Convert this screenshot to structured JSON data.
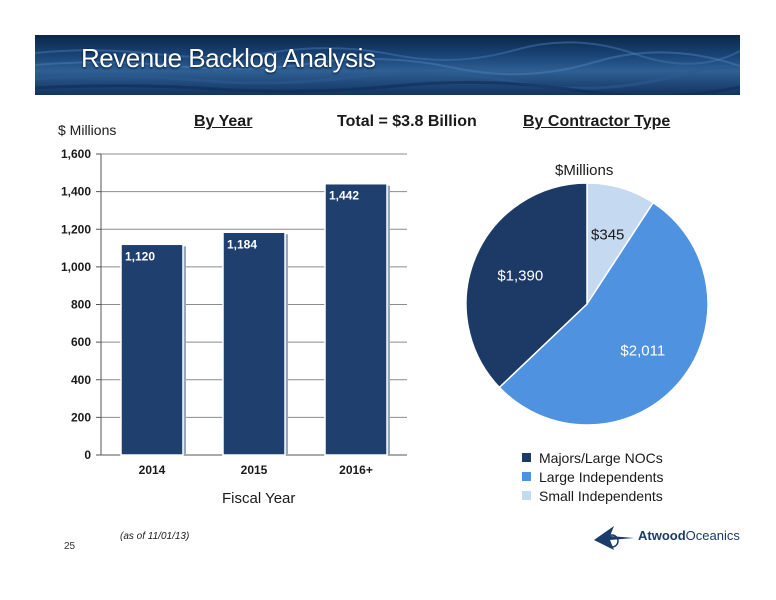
{
  "slide": {
    "title": "Revenue Backlog Analysis",
    "page_number": "25",
    "note": "(as of 11/01/13)",
    "brand": {
      "first": "Atwood",
      "second": "Oceanics"
    }
  },
  "headers": {
    "by_year": "By Year",
    "total": "Total = $3.8 Billion",
    "by_contractor": "By Contractor Type"
  },
  "colors": {
    "bar": "#1f3f6e",
    "pie": [
      "#1d3a66",
      "#4f92e0",
      "#c5d9f1"
    ],
    "pie_label_dark": "#ffffff",
    "pie_label_light": "#1a1a1a"
  },
  "chart_data": [
    {
      "type": "bar",
      "categories": [
        "2014",
        "2015",
        "2016+"
      ],
      "values": [
        1120,
        1184,
        1442
      ],
      "data_labels": [
        "1,120",
        "1,184",
        "1,442"
      ],
      "ylabel": "$ Millions",
      "xlabel": "Fiscal Year",
      "ylim": [
        0,
        1600
      ],
      "yticks": [
        "0",
        "200",
        "400",
        "600",
        "800",
        "1,000",
        "1,200",
        "1,400",
        "1,600"
      ],
      "grid": true
    },
    {
      "type": "pie",
      "title": "$Millions",
      "categories": [
        "Majors/Large NOCs",
        "Large Independents",
        "Small Independents"
      ],
      "values": [
        1390,
        2011,
        345
      ],
      "data_labels": [
        "$1,390",
        "$2,011",
        "$345"
      ],
      "legend": "bottom"
    }
  ]
}
